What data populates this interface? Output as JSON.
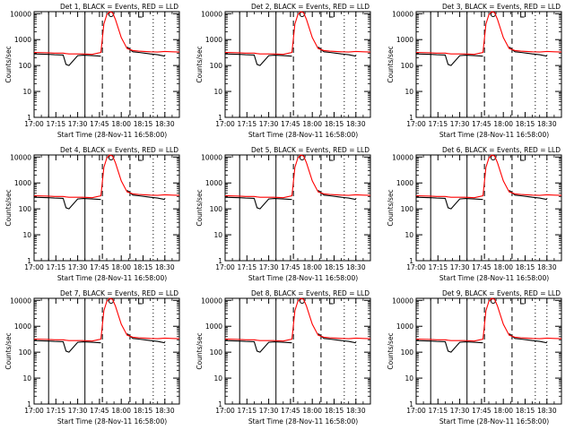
{
  "panels": [
    {
      "title": "Det 1, BLACK = Events, RED = LLD",
      "xtitle": "Start Time (28-Nov-11 16:58:00)"
    },
    {
      "title": "Det 2, BLACK = Events, RED = LLD",
      "xtitle": "Start Time (28-Nov-11 16:58:00)"
    },
    {
      "title": "Det 3, BLACK = Events, RED = LLD",
      "xtitle": "Start Time (28-Nov-11 16:58:00)"
    },
    {
      "title": "Det 4, BLACK = Events, RED = LLD",
      "xtitle": "Start Time (28-Nov-11 16:58:00)"
    },
    {
      "title": "Det 5, BLACK = Events, RED = LLD",
      "xtitle": "Start Time (28-Nov-11 16:58:00)"
    },
    {
      "title": "Det 6, BLACK = Events, RED = LLD",
      "xtitle": "Start Time (28-Nov-11 16:58:00)"
    },
    {
      "title": "Det 7, BLACK = Events, RED = LLD",
      "xtitle": "Start Time (28-Nov-11 16:58:00)"
    },
    {
      "title": "Det 8, BLACK = Events, RED = LLD",
      "xtitle": "Start Time (28-Nov-11 16:58:00)"
    },
    {
      "title": "Det 9, BLACK = Events, RED = LLD",
      "xtitle": "Start Time (28-Nov-11 16:58:00)"
    }
  ],
  "ylabel": "Counts/sec",
  "colors": {
    "events": "#000000",
    "lld": "#ff0000"
  },
  "chart_data": {
    "type": "line",
    "grid": false,
    "yscale": "log",
    "ylim": [
      1,
      12000
    ],
    "xlim": [
      "17:00",
      "18:40"
    ],
    "xticks": [
      "17:00",
      "17:15",
      "17:30",
      "17:45",
      "18:00",
      "18:15",
      "18:30"
    ],
    "yticks": [
      "1",
      "10",
      "100",
      "1000",
      "10000"
    ],
    "x": [
      "17:00",
      "17:10",
      "17:14",
      "17:20",
      "17:22",
      "17:24",
      "17:30",
      "17:34",
      "17:40",
      "17:46",
      "17:48",
      "17:50",
      "17:52",
      "17:54",
      "17:56",
      "18:00",
      "18:04",
      "18:08",
      "18:12",
      "18:16",
      "18:20",
      "18:25",
      "18:30",
      "18:35",
      "18:40"
    ],
    "series": [
      {
        "name": "BLACK = Events",
        "values": [
          280,
          270,
          260,
          255,
          110,
          100,
          240,
          250,
          240,
          230,
          null,
          null,
          null,
          null,
          null,
          null,
          520,
          340,
          320,
          300,
          280,
          260,
          230,
          null,
          null
        ]
      },
      {
        "name": "RED = LLD",
        "values": [
          320,
          310,
          300,
          300,
          290,
          280,
          280,
          280,
          270,
          320,
          4000,
          9000,
          12000,
          11000,
          6000,
          1200,
          450,
          380,
          360,
          350,
          340,
          330,
          350,
          340,
          330
        ]
      }
    ]
  }
}
